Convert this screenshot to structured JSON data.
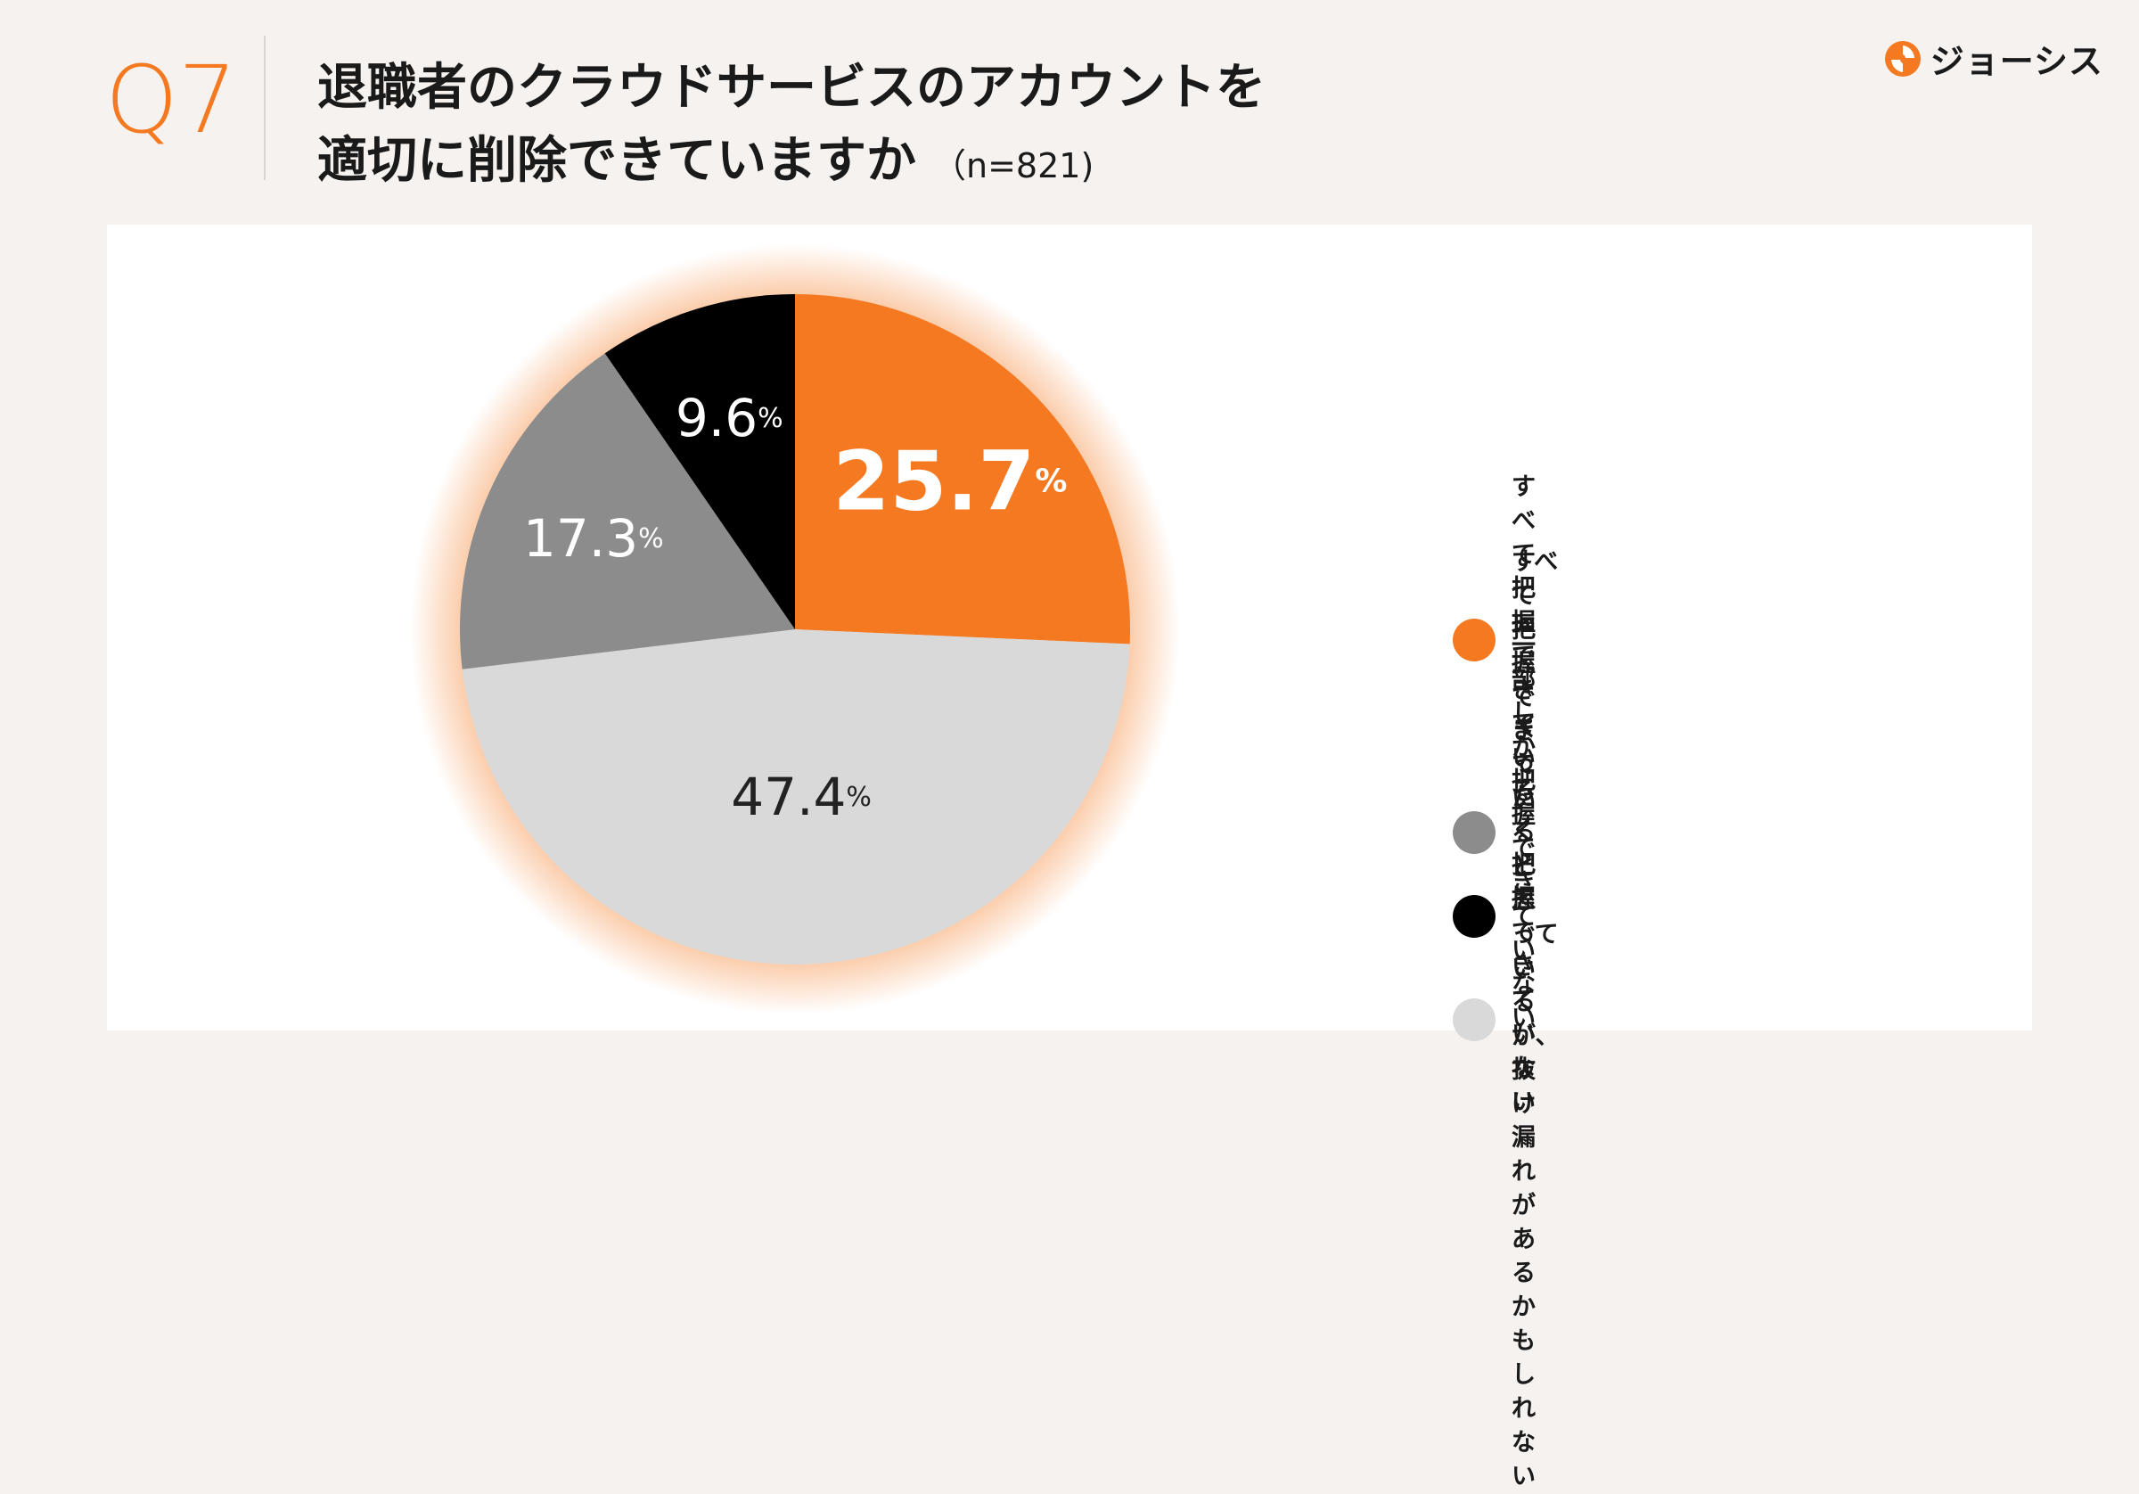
{
  "header": {
    "question_number": "Q7",
    "title_line1": "退職者のクラウドサービスのアカウントを",
    "title_line2": "適切に削除できていますか",
    "sample_size": "（n=821)"
  },
  "brand": {
    "name": "ジョーシス",
    "logo_icon": "josys-logo-icon",
    "color": "#f47920"
  },
  "chart_data": {
    "type": "pie",
    "categories": [
      "すべて把握できている",
      "すべて把握できていると思っているが、\n抜け漏れがあるかもしれない",
      "一部しか把握できていない",
      "まったく把握できていない"
    ],
    "values": [
      25.7,
      47.4,
      17.3,
      9.6
    ],
    "value_labels": [
      "25.7",
      "47.4",
      "17.3",
      "9.6"
    ],
    "unit": "%",
    "colors": [
      "#f47920",
      "#d9d9d9",
      "#8c8c8c",
      "#000000"
    ],
    "start_angle": "12 o'clock",
    "direction": "clockwise",
    "highlighted_slice": 0,
    "legend_position": "right"
  }
}
